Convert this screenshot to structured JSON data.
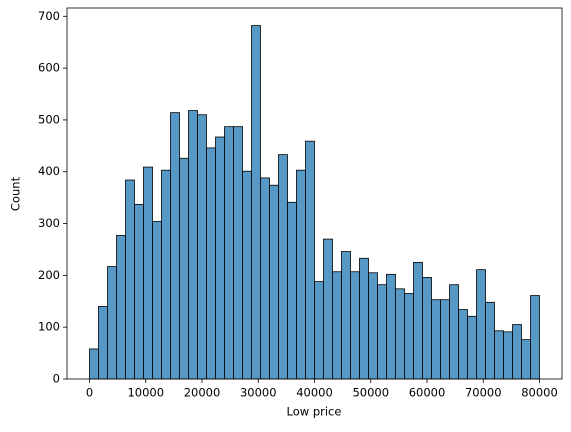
{
  "chart_data": {
    "type": "histogram",
    "xlabel": "Low price",
    "ylabel": "Count",
    "color": "#5799c6",
    "edgecolor": "#000000",
    "bins": [
      0,
      1600,
      3200,
      4800,
      6400,
      8000,
      9600,
      11200,
      12800,
      14400,
      16000,
      17600,
      19200,
      20800,
      22400,
      24000,
      25600,
      27200,
      28800,
      30400,
      32000,
      33600,
      35200,
      36800,
      38400,
      40000,
      41600,
      43200,
      44800,
      46400,
      48000,
      49600,
      51200,
      52800,
      54400,
      56000,
      57600,
      59200,
      60800,
      62400,
      64000,
      65600,
      67200,
      68800,
      70400,
      72000,
      73600,
      75200,
      76800,
      78400,
      80000
    ],
    "counts": [
      58,
      140,
      217,
      277,
      384,
      337,
      409,
      304,
      403,
      514,
      426,
      518,
      510,
      446,
      467,
      487,
      487,
      401,
      682,
      388,
      374,
      433,
      341,
      403,
      459,
      188,
      270,
      207,
      246,
      207,
      233,
      205,
      182,
      202,
      174,
      165,
      225,
      196,
      153,
      153,
      182,
      134,
      121,
      211,
      148,
      93,
      91,
      105,
      76,
      161
    ],
    "xlim": [
      -4000,
      84000
    ],
    "ylim": [
      0,
      716
    ],
    "xticks": [
      0,
      10000,
      20000,
      30000,
      40000,
      50000,
      60000,
      70000,
      80000
    ],
    "yticks": [
      0,
      100,
      200,
      300,
      400,
      500,
      600,
      700
    ]
  }
}
